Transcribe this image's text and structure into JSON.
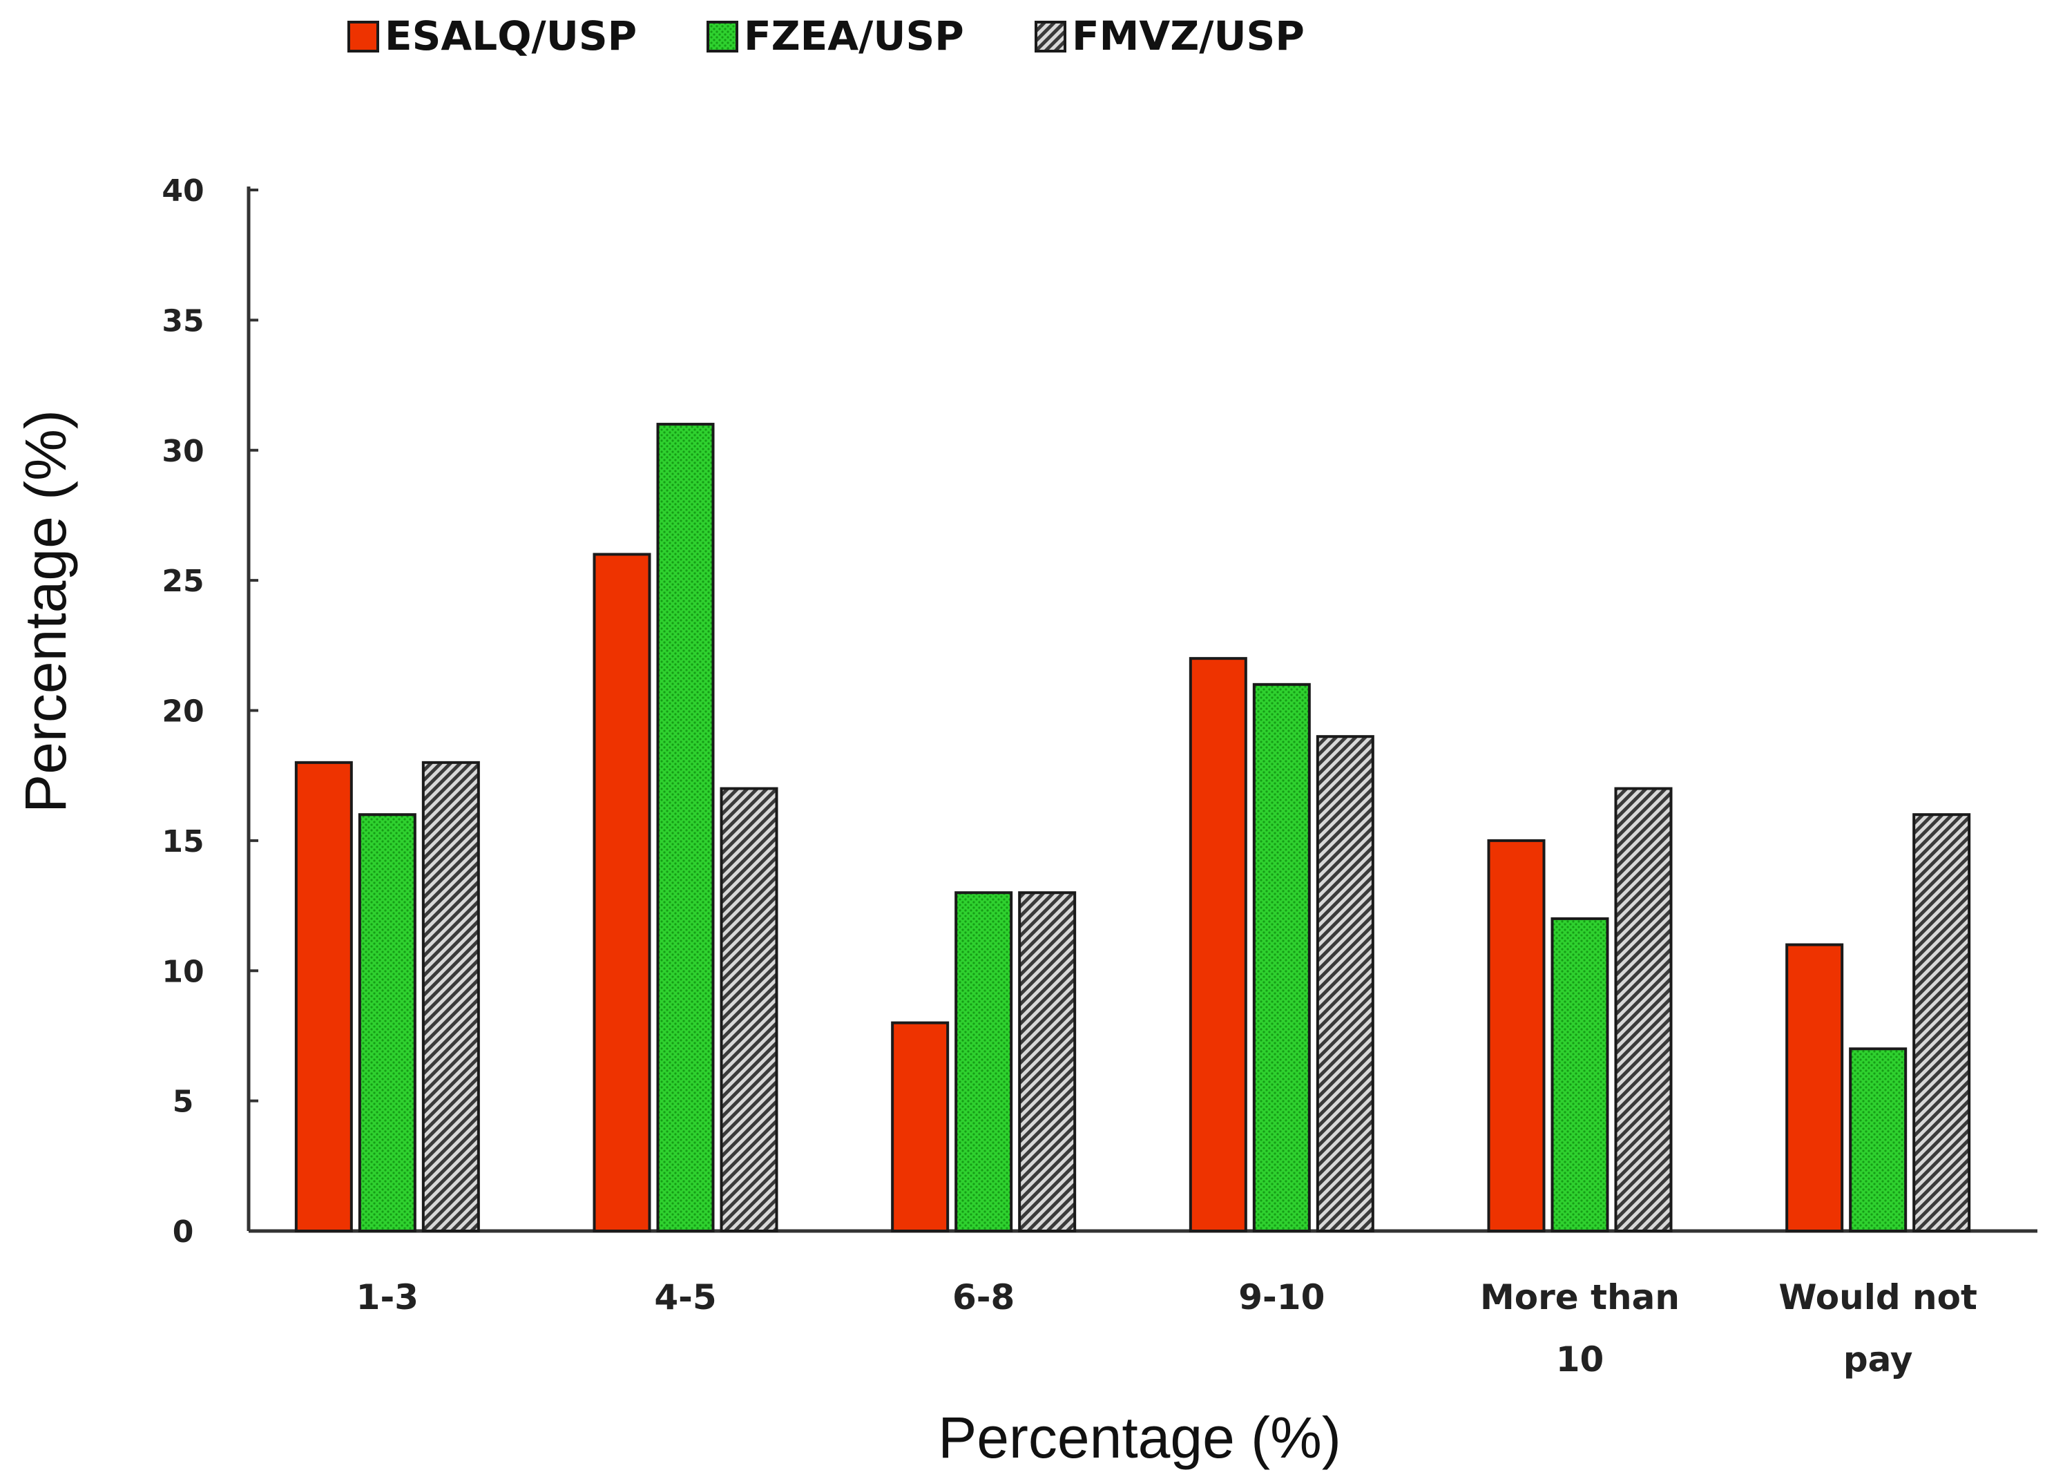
{
  "chart_data": {
    "type": "bar",
    "title": "",
    "xlabel": "Percentage (%)",
    "ylabel": "Percentage (%)",
    "ylim": [
      0,
      40
    ],
    "yticks": [
      "0",
      "5",
      "10",
      "15",
      "20",
      "25",
      "30",
      "35",
      "40"
    ],
    "categories": [
      [
        "1-3"
      ],
      [
        "4-5"
      ],
      [
        "6-8"
      ],
      [
        "9-10"
      ],
      [
        "More than",
        "10"
      ],
      [
        "Would not",
        "pay"
      ]
    ],
    "series": [
      {
        "name": "ESALQ/USP",
        "color": "#ee3300",
        "pattern": "solid",
        "values": [
          18,
          26,
          8,
          22,
          15,
          11
        ]
      },
      {
        "name": "FZEA/USP",
        "color": "#22cc22",
        "pattern": "dots",
        "values": [
          16,
          31,
          13,
          21,
          12,
          7
        ]
      },
      {
        "name": "FMVZ/USP",
        "color": "#888888",
        "pattern": "hatch",
        "values": [
          18,
          17,
          13,
          19,
          17,
          16
        ]
      }
    ],
    "legend_position": "top",
    "grid": false
  }
}
